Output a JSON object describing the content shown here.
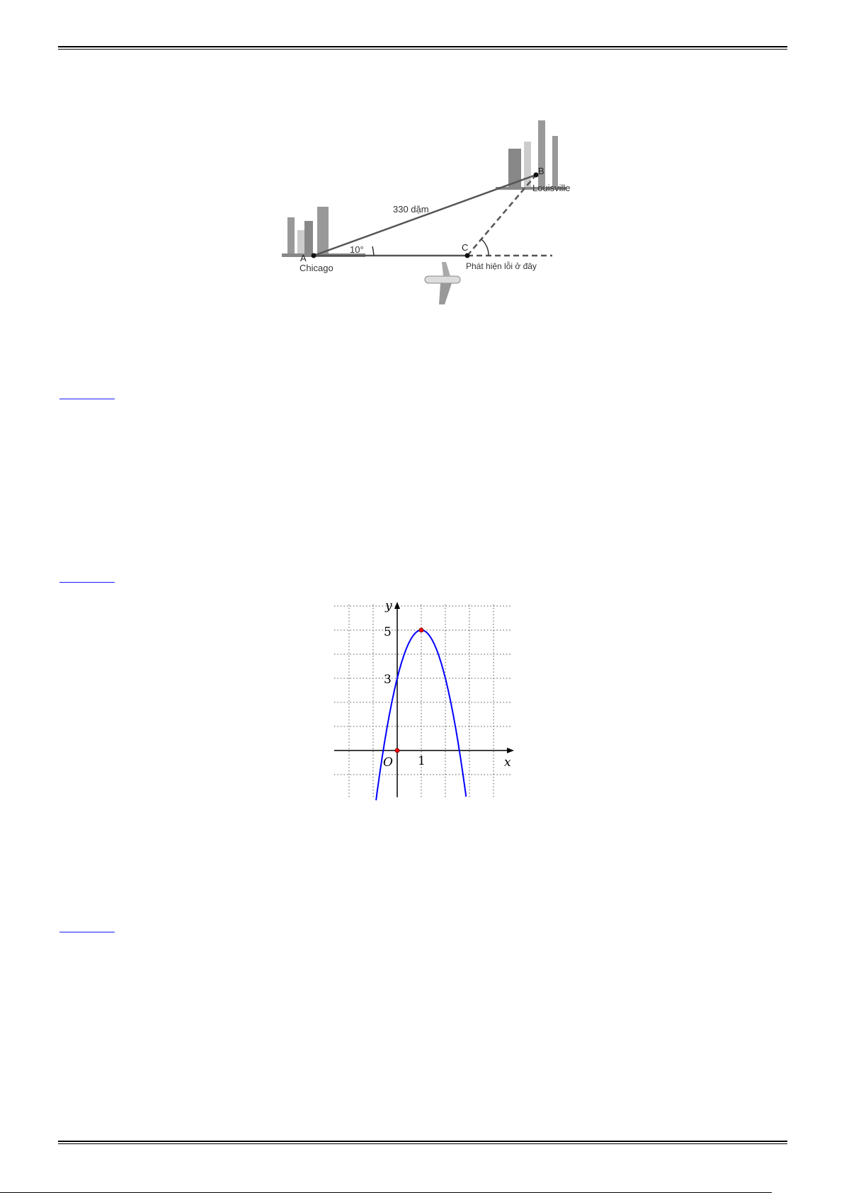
{
  "figure_flight": {
    "distance_label": "330 dặm",
    "angle_label": "10°",
    "point_a": "A",
    "point_b": "B",
    "point_c": "C",
    "city_a": "Chicago",
    "city_b": "Louisville",
    "error_label": "Phát hiện lỗi ở đây"
  },
  "graph": {
    "y_axis_label": "y",
    "x_axis_label": "x",
    "origin_label": "O",
    "tick_y5": "5",
    "tick_y3": "3",
    "tick_x1": "1",
    "curve_color": "#0000ff",
    "point_color": "#ff0000"
  },
  "chart_data": {
    "type": "line",
    "series": [
      {
        "function": "y = -2(x-1)^2 + 5",
        "vertex": [
          1,
          5
        ],
        "y_intercept": 3
      }
    ],
    "marked_points": [
      [
        0,
        0
      ],
      [
        1,
        5
      ]
    ],
    "xlim": [
      -2.6,
      4.8
    ],
    "ylim": [
      -1.9,
      6.1
    ],
    "grid": true,
    "tick_labels": {
      "x": [
        "1"
      ],
      "y": [
        "3",
        "5"
      ]
    }
  }
}
